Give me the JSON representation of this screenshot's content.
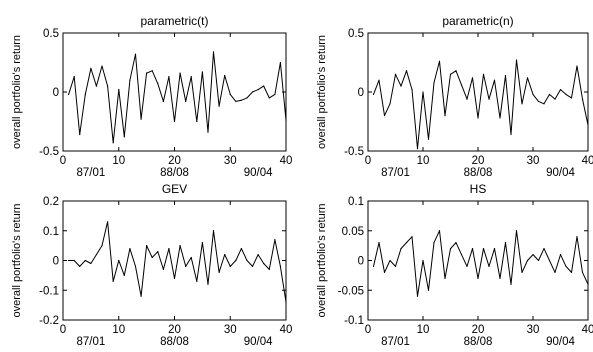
{
  "chart_data": [
    {
      "type": "line",
      "title": "parametric(t)",
      "xlabel": "",
      "ylabel": "overall portfolio's return",
      "xlim": [
        0,
        40
      ],
      "ylim": [
        -0.5,
        0.5
      ],
      "yticks": [
        "-0.5",
        "0",
        "0.5"
      ],
      "xticks": [
        "0",
        "10",
        "20",
        "30",
        "40"
      ],
      "date_labels": [
        "87/01",
        "88/08",
        "90/04"
      ],
      "x": [
        1,
        2,
        3,
        4,
        5,
        6,
        7,
        8,
        9,
        10,
        11,
        12,
        13,
        14,
        15,
        16,
        17,
        18,
        19,
        20,
        21,
        22,
        23,
        24,
        25,
        26,
        27,
        28,
        29,
        30,
        31,
        32,
        33,
        34,
        35,
        36,
        37,
        38,
        39,
        40
      ],
      "values": [
        -0.02,
        0.13,
        -0.36,
        -0.02,
        0.2,
        0.05,
        0.22,
        0.05,
        -0.43,
        0.02,
        -0.38,
        0.1,
        0.32,
        -0.23,
        0.16,
        0.18,
        0.07,
        -0.08,
        0.13,
        -0.25,
        0.16,
        -0.08,
        0.13,
        -0.25,
        0.17,
        -0.34,
        0.34,
        -0.12,
        0.14,
        -0.02,
        -0.08,
        -0.07,
        -0.05,
        0.0,
        0.02,
        0.05,
        -0.05,
        -0.02,
        0.25,
        -0.24
      ],
      "grid": false,
      "grid_off": true
    },
    {
      "type": "line",
      "title": "parametric(n)",
      "xlabel": "",
      "ylabel": "overall portfolio's return",
      "xlim": [
        0,
        40
      ],
      "ylim": [
        -0.5,
        0.5
      ],
      "yticks": [
        "-0.5",
        "0",
        "0.5"
      ],
      "xticks": [
        "0",
        "10",
        "20",
        "30",
        "40"
      ],
      "date_labels": [
        "87/01",
        "88/08",
        "90/04"
      ],
      "x": [
        1,
        2,
        3,
        4,
        5,
        6,
        7,
        8,
        9,
        10,
        11,
        12,
        13,
        14,
        15,
        16,
        17,
        18,
        19,
        20,
        21,
        22,
        23,
        24,
        25,
        26,
        27,
        28,
        29,
        30,
        31,
        32,
        33,
        34,
        35,
        36,
        37,
        38,
        39,
        40
      ],
      "values": [
        -0.02,
        0.1,
        -0.2,
        -0.1,
        0.15,
        0.05,
        0.18,
        0.02,
        -0.48,
        0.0,
        -0.4,
        0.08,
        0.26,
        -0.2,
        0.15,
        0.18,
        0.06,
        -0.06,
        0.12,
        -0.22,
        0.15,
        -0.06,
        0.1,
        -0.22,
        0.14,
        -0.36,
        0.27,
        -0.1,
        0.12,
        -0.02,
        -0.08,
        -0.1,
        -0.02,
        -0.06,
        0.02,
        -0.02,
        -0.05,
        0.22,
        -0.06,
        -0.28
      ],
      "grid": false,
      "grid_off": true
    },
    {
      "type": "line",
      "title": "GEV",
      "xlabel": "",
      "ylabel": "overall portfolio's return",
      "xlim": [
        0,
        40
      ],
      "ylim": [
        -0.2,
        0.2
      ],
      "yticks": [
        "-0.2",
        "-0.1",
        "0",
        "0.1",
        "0.2"
      ],
      "xticks": [
        "0",
        "10",
        "20",
        "30",
        "40"
      ],
      "date_labels": [
        "87/01",
        "88/08",
        "90/04"
      ],
      "x": [
        1,
        2,
        3,
        4,
        5,
        6,
        7,
        8,
        9,
        10,
        11,
        12,
        13,
        14,
        15,
        16,
        17,
        18,
        19,
        20,
        21,
        22,
        23,
        24,
        25,
        26,
        27,
        28,
        29,
        30,
        31,
        32,
        33,
        34,
        35,
        36,
        37,
        38,
        39,
        40
      ],
      "values": [
        0.0,
        0.0,
        -0.02,
        0.0,
        -0.01,
        0.02,
        0.05,
        0.13,
        -0.07,
        0.0,
        -0.05,
        0.04,
        -0.02,
        -0.12,
        0.05,
        0.01,
        0.03,
        -0.03,
        0.04,
        -0.06,
        0.05,
        -0.02,
        0.01,
        -0.07,
        0.06,
        -0.08,
        0.1,
        -0.04,
        0.02,
        -0.02,
        0.0,
        0.04,
        0.0,
        -0.02,
        0.02,
        -0.01,
        -0.03,
        0.07,
        -0.02,
        -0.14
      ],
      "grid": false,
      "grid_off": true
    },
    {
      "type": "line",
      "title": "HS",
      "xlabel": "",
      "ylabel": "overall portfolio's return",
      "xlim": [
        0,
        40
      ],
      "ylim": [
        -0.1,
        0.1
      ],
      "yticks": [
        "-0.1",
        "-0.05",
        "0",
        "0.05",
        "0.1"
      ],
      "xticks": [
        "0",
        "10",
        "20",
        "30",
        "40"
      ],
      "date_labels": [
        "87/01",
        "88/08",
        "90/04"
      ],
      "x": [
        1,
        2,
        3,
        4,
        5,
        6,
        7,
        8,
        9,
        10,
        11,
        12,
        13,
        14,
        15,
        16,
        17,
        18,
        19,
        20,
        21,
        22,
        23,
        24,
        25,
        26,
        27,
        28,
        29,
        30,
        31,
        32,
        33,
        34,
        35,
        36,
        37,
        38,
        39,
        40
      ],
      "values": [
        -0.01,
        0.03,
        -0.02,
        0.0,
        -0.01,
        0.02,
        0.03,
        0.04,
        -0.06,
        0.0,
        -0.05,
        0.03,
        0.05,
        -0.03,
        0.02,
        0.03,
        0.01,
        -0.01,
        0.02,
        -0.03,
        0.02,
        -0.01,
        0.02,
        -0.03,
        0.03,
        -0.04,
        0.05,
        -0.02,
        0.0,
        0.01,
        0.0,
        0.02,
        0.0,
        -0.02,
        0.01,
        -0.01,
        -0.02,
        0.04,
        -0.02,
        -0.04
      ],
      "grid": false,
      "grid_off": true
    }
  ]
}
